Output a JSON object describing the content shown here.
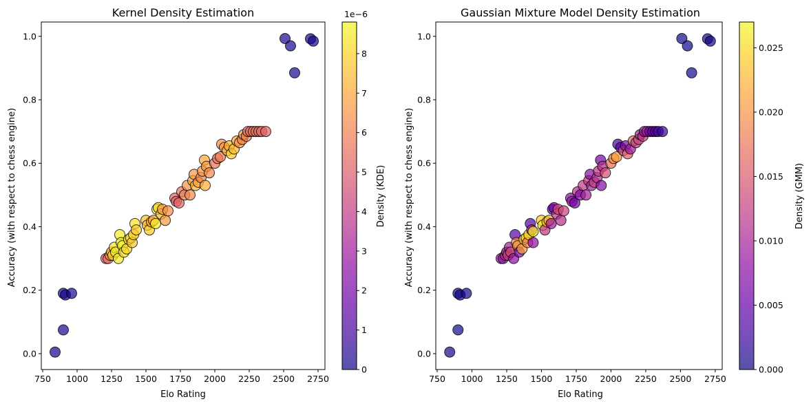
{
  "chart_data": [
    {
      "type": "scatter",
      "title": "Kernel Density Estimation",
      "xlabel": "Elo Rating",
      "ylabel": "Accuracy (with respect to chess engine)",
      "xlim": [
        740,
        2800
      ],
      "ylim": [
        -0.05,
        1.045
      ],
      "xticks": [
        750,
        1000,
        1250,
        1500,
        1750,
        2000,
        2250,
        2500,
        2750
      ],
      "yticks": [
        0.0,
        0.2,
        0.4,
        0.6,
        0.8,
        1.0
      ],
      "colormap": "plasma",
      "alpha": 0.7,
      "grid": false,
      "colorbar": {
        "label": "Density (KDE)",
        "range": [
          0,
          8.8
        ],
        "ticks": [
          0,
          1,
          2,
          3,
          4,
          5,
          6,
          7,
          8
        ],
        "offset_text": "1e−6"
      },
      "points": [
        {
          "x": 840,
          "y": 0.005,
          "c": 0.1
        },
        {
          "x": 900,
          "y": 0.075,
          "c": 0.15
        },
        {
          "x": 900,
          "y": 0.19,
          "c": 0.15
        },
        {
          "x": 915,
          "y": 0.185,
          "c": 0.15
        },
        {
          "x": 960,
          "y": 0.19,
          "c": 0.15
        },
        {
          "x": 1210,
          "y": 0.3,
          "c": 5.2
        },
        {
          "x": 1225,
          "y": 0.3,
          "c": 5.5
        },
        {
          "x": 1240,
          "y": 0.31,
          "c": 6.2
        },
        {
          "x": 1250,
          "y": 0.32,
          "c": 7.5
        },
        {
          "x": 1260,
          "y": 0.31,
          "c": 8.0
        },
        {
          "x": 1270,
          "y": 0.335,
          "c": 8.3
        },
        {
          "x": 1280,
          "y": 0.32,
          "c": 8.5
        },
        {
          "x": 1300,
          "y": 0.3,
          "c": 8.5
        },
        {
          "x": 1310,
          "y": 0.375,
          "c": 8.5
        },
        {
          "x": 1320,
          "y": 0.35,
          "c": 8.7
        },
        {
          "x": 1330,
          "y": 0.34,
          "c": 8.6
        },
        {
          "x": 1340,
          "y": 0.32,
          "c": 8.4
        },
        {
          "x": 1360,
          "y": 0.33,
          "c": 8.0
        },
        {
          "x": 1375,
          "y": 0.36,
          "c": 8.4
        },
        {
          "x": 1390,
          "y": 0.365,
          "c": 8.2
        },
        {
          "x": 1400,
          "y": 0.35,
          "c": 7.7
        },
        {
          "x": 1410,
          "y": 0.375,
          "c": 8.0
        },
        {
          "x": 1420,
          "y": 0.41,
          "c": 8.3
        },
        {
          "x": 1430,
          "y": 0.39,
          "c": 7.9
        },
        {
          "x": 1500,
          "y": 0.42,
          "c": 7.5
        },
        {
          "x": 1510,
          "y": 0.405,
          "c": 7.4
        },
        {
          "x": 1525,
          "y": 0.39,
          "c": 7.9
        },
        {
          "x": 1540,
          "y": 0.415,
          "c": 7.0
        },
        {
          "x": 1555,
          "y": 0.42,
          "c": 7.1
        },
        {
          "x": 1570,
          "y": 0.41,
          "c": 8.6
        },
        {
          "x": 1580,
          "y": 0.455,
          "c": 8.8
        },
        {
          "x": 1590,
          "y": 0.46,
          "c": 7.9
        },
        {
          "x": 1610,
          "y": 0.44,
          "c": 7.5
        },
        {
          "x": 1620,
          "y": 0.455,
          "c": 6.8
        },
        {
          "x": 1640,
          "y": 0.42,
          "c": 6.7
        },
        {
          "x": 1660,
          "y": 0.45,
          "c": 6.4
        },
        {
          "x": 1710,
          "y": 0.49,
          "c": 5.5
        },
        {
          "x": 1720,
          "y": 0.48,
          "c": 5.0
        },
        {
          "x": 1740,
          "y": 0.475,
          "c": 5.3
        },
        {
          "x": 1760,
          "y": 0.51,
          "c": 5.6
        },
        {
          "x": 1780,
          "y": 0.5,
          "c": 5.9
        },
        {
          "x": 1800,
          "y": 0.53,
          "c": 6.5
        },
        {
          "x": 1820,
          "y": 0.5,
          "c": 6.3
        },
        {
          "x": 1840,
          "y": 0.545,
          "c": 7.0
        },
        {
          "x": 1850,
          "y": 0.565,
          "c": 6.6
        },
        {
          "x": 1860,
          "y": 0.53,
          "c": 7.3
        },
        {
          "x": 1880,
          "y": 0.54,
          "c": 6.9
        },
        {
          "x": 1900,
          "y": 0.555,
          "c": 6.1
        },
        {
          "x": 1910,
          "y": 0.575,
          "c": 6.6
        },
        {
          "x": 1925,
          "y": 0.61,
          "c": 7.0
        },
        {
          "x": 1930,
          "y": 0.53,
          "c": 7.2
        },
        {
          "x": 1940,
          "y": 0.59,
          "c": 6.8
        },
        {
          "x": 1960,
          "y": 0.57,
          "c": 6.3
        },
        {
          "x": 2000,
          "y": 0.6,
          "c": 5.8
        },
        {
          "x": 2020,
          "y": 0.615,
          "c": 5.6
        },
        {
          "x": 2040,
          "y": 0.62,
          "c": 5.9
        },
        {
          "x": 2050,
          "y": 0.66,
          "c": 6.3
        },
        {
          "x": 2070,
          "y": 0.65,
          "c": 6.6
        },
        {
          "x": 2090,
          "y": 0.64,
          "c": 7.2
        },
        {
          "x": 2105,
          "y": 0.655,
          "c": 7.3
        },
        {
          "x": 2120,
          "y": 0.63,
          "c": 7.9
        },
        {
          "x": 2140,
          "y": 0.645,
          "c": 7.5
        },
        {
          "x": 2160,
          "y": 0.67,
          "c": 7.1
        },
        {
          "x": 2180,
          "y": 0.665,
          "c": 6.6
        },
        {
          "x": 2200,
          "y": 0.675,
          "c": 6.1
        },
        {
          "x": 2210,
          "y": 0.69,
          "c": 6.3
        },
        {
          "x": 2230,
          "y": 0.685,
          "c": 6.0
        },
        {
          "x": 2240,
          "y": 0.7,
          "c": 5.7
        },
        {
          "x": 2260,
          "y": 0.7,
          "c": 5.6
        },
        {
          "x": 2280,
          "y": 0.7,
          "c": 5.6
        },
        {
          "x": 2300,
          "y": 0.7,
          "c": 5.5
        },
        {
          "x": 2320,
          "y": 0.7,
          "c": 5.4
        },
        {
          "x": 2340,
          "y": 0.7,
          "c": 5.5
        },
        {
          "x": 2370,
          "y": 0.7,
          "c": 5.2
        },
        {
          "x": 2510,
          "y": 0.993,
          "c": 0.15
        },
        {
          "x": 2550,
          "y": 0.97,
          "c": 0.15
        },
        {
          "x": 2580,
          "y": 0.885,
          "c": 0.15
        },
        {
          "x": 2695,
          "y": 0.992,
          "c": 0.15
        },
        {
          "x": 2715,
          "y": 0.985,
          "c": 0.15
        }
      ]
    },
    {
      "type": "scatter",
      "title": "Gaussian Mixture Model Density Estimation",
      "xlabel": "Elo Rating",
      "ylabel": "Accuracy (with respect to chess engine)",
      "xlim": [
        740,
        2800
      ],
      "ylim": [
        -0.05,
        1.045
      ],
      "xticks": [
        750,
        1000,
        1250,
        1500,
        1750,
        2000,
        2250,
        2500,
        2750
      ],
      "yticks": [
        0.0,
        0.2,
        0.4,
        0.6,
        0.8,
        1.0
      ],
      "colormap": "plasma",
      "alpha": 0.7,
      "grid": false,
      "colorbar": {
        "label": "Density (GMM)",
        "range": [
          0,
          0.027
        ],
        "ticks": [
          0.0,
          0.005,
          0.01,
          0.015,
          0.02,
          0.025
        ],
        "tick_labels": [
          "0.000",
          "0.005",
          "0.010",
          "0.015",
          "0.020",
          "0.025"
        ]
      },
      "points": [
        {
          "x": 840,
          "y": 0.005,
          "c": 0.0003
        },
        {
          "x": 900,
          "y": 0.075,
          "c": 0.0003
        },
        {
          "x": 900,
          "y": 0.19,
          "c": 0.0003
        },
        {
          "x": 915,
          "y": 0.185,
          "c": 0.0003
        },
        {
          "x": 960,
          "y": 0.19,
          "c": 0.0003
        },
        {
          "x": 1210,
          "y": 0.3,
          "c": 0.009
        },
        {
          "x": 1225,
          "y": 0.3,
          "c": 0.008
        },
        {
          "x": 1240,
          "y": 0.31,
          "c": 0.011
        },
        {
          "x": 1250,
          "y": 0.32,
          "c": 0.009
        },
        {
          "x": 1260,
          "y": 0.31,
          "c": 0.013
        },
        {
          "x": 1270,
          "y": 0.335,
          "c": 0.01
        },
        {
          "x": 1280,
          "y": 0.32,
          "c": 0.014
        },
        {
          "x": 1300,
          "y": 0.3,
          "c": 0.008
        },
        {
          "x": 1310,
          "y": 0.375,
          "c": 0.004
        },
        {
          "x": 1320,
          "y": 0.35,
          "c": 0.019
        },
        {
          "x": 1330,
          "y": 0.34,
          "c": 0.02
        },
        {
          "x": 1340,
          "y": 0.32,
          "c": 0.007
        },
        {
          "x": 1360,
          "y": 0.33,
          "c": 0.021
        },
        {
          "x": 1375,
          "y": 0.36,
          "c": 0.024
        },
        {
          "x": 1390,
          "y": 0.365,
          "c": 0.023
        },
        {
          "x": 1400,
          "y": 0.35,
          "c": 0.018
        },
        {
          "x": 1410,
          "y": 0.375,
          "c": 0.025
        },
        {
          "x": 1420,
          "y": 0.41,
          "c": 0.004
        },
        {
          "x": 1430,
          "y": 0.39,
          "c": 0.01
        },
        {
          "x": 1440,
          "y": 0.35,
          "c": 0.008
        },
        {
          "x": 1440,
          "y": 0.385,
          "c": 0.026
        },
        {
          "x": 1500,
          "y": 0.42,
          "c": 0.024
        },
        {
          "x": 1510,
          "y": 0.405,
          "c": 0.026
        },
        {
          "x": 1525,
          "y": 0.39,
          "c": 0.012
        },
        {
          "x": 1540,
          "y": 0.415,
          "c": 0.022
        },
        {
          "x": 1555,
          "y": 0.42,
          "c": 0.023
        },
        {
          "x": 1570,
          "y": 0.41,
          "c": 0.009
        },
        {
          "x": 1580,
          "y": 0.455,
          "c": 0.004
        },
        {
          "x": 1590,
          "y": 0.46,
          "c": 0.006
        },
        {
          "x": 1610,
          "y": 0.44,
          "c": 0.012
        },
        {
          "x": 1620,
          "y": 0.455,
          "c": 0.014
        },
        {
          "x": 1640,
          "y": 0.42,
          "c": 0.011
        },
        {
          "x": 1660,
          "y": 0.45,
          "c": 0.013
        },
        {
          "x": 1710,
          "y": 0.49,
          "c": 0.008
        },
        {
          "x": 1720,
          "y": 0.48,
          "c": 0.009
        },
        {
          "x": 1740,
          "y": 0.475,
          "c": 0.006
        },
        {
          "x": 1760,
          "y": 0.51,
          "c": 0.011
        },
        {
          "x": 1780,
          "y": 0.5,
          "c": 0.007
        },
        {
          "x": 1800,
          "y": 0.53,
          "c": 0.012
        },
        {
          "x": 1820,
          "y": 0.5,
          "c": 0.01
        },
        {
          "x": 1840,
          "y": 0.545,
          "c": 0.012
        },
        {
          "x": 1850,
          "y": 0.565,
          "c": 0.008
        },
        {
          "x": 1860,
          "y": 0.53,
          "c": 0.01
        },
        {
          "x": 1880,
          "y": 0.54,
          "c": 0.013
        },
        {
          "x": 1900,
          "y": 0.555,
          "c": 0.011
        },
        {
          "x": 1910,
          "y": 0.575,
          "c": 0.012
        },
        {
          "x": 1925,
          "y": 0.61,
          "c": 0.006
        },
        {
          "x": 1930,
          "y": 0.53,
          "c": 0.007
        },
        {
          "x": 1940,
          "y": 0.59,
          "c": 0.011
        },
        {
          "x": 1960,
          "y": 0.57,
          "c": 0.014
        },
        {
          "x": 2000,
          "y": 0.6,
          "c": 0.017
        },
        {
          "x": 2020,
          "y": 0.615,
          "c": 0.02
        },
        {
          "x": 2040,
          "y": 0.62,
          "c": 0.021
        },
        {
          "x": 2050,
          "y": 0.66,
          "c": 0.003
        },
        {
          "x": 2070,
          "y": 0.65,
          "c": 0.004
        },
        {
          "x": 2090,
          "y": 0.64,
          "c": 0.014
        },
        {
          "x": 2105,
          "y": 0.655,
          "c": 0.007
        },
        {
          "x": 2120,
          "y": 0.63,
          "c": 0.016
        },
        {
          "x": 2140,
          "y": 0.645,
          "c": 0.009
        },
        {
          "x": 2160,
          "y": 0.67,
          "c": 0.017
        },
        {
          "x": 2180,
          "y": 0.665,
          "c": 0.012
        },
        {
          "x": 2200,
          "y": 0.675,
          "c": 0.014
        },
        {
          "x": 2210,
          "y": 0.69,
          "c": 0.01
        },
        {
          "x": 2230,
          "y": 0.685,
          "c": 0.012
        },
        {
          "x": 2240,
          "y": 0.7,
          "c": 0.008
        },
        {
          "x": 2260,
          "y": 0.7,
          "c": 0.01
        },
        {
          "x": 2280,
          "y": 0.7,
          "c": 0.006
        },
        {
          "x": 2300,
          "y": 0.7,
          "c": 0.005
        },
        {
          "x": 2320,
          "y": 0.7,
          "c": 0.004
        },
        {
          "x": 2340,
          "y": 0.7,
          "c": 0.003
        },
        {
          "x": 2370,
          "y": 0.7,
          "c": 0.002
        },
        {
          "x": 2510,
          "y": 0.993,
          "c": 0.0003
        },
        {
          "x": 2550,
          "y": 0.97,
          "c": 0.0003
        },
        {
          "x": 2580,
          "y": 0.885,
          "c": 0.0003
        },
        {
          "x": 2695,
          "y": 0.992,
          "c": 0.0003
        },
        {
          "x": 2715,
          "y": 0.985,
          "c": 0.0003
        }
      ]
    }
  ]
}
